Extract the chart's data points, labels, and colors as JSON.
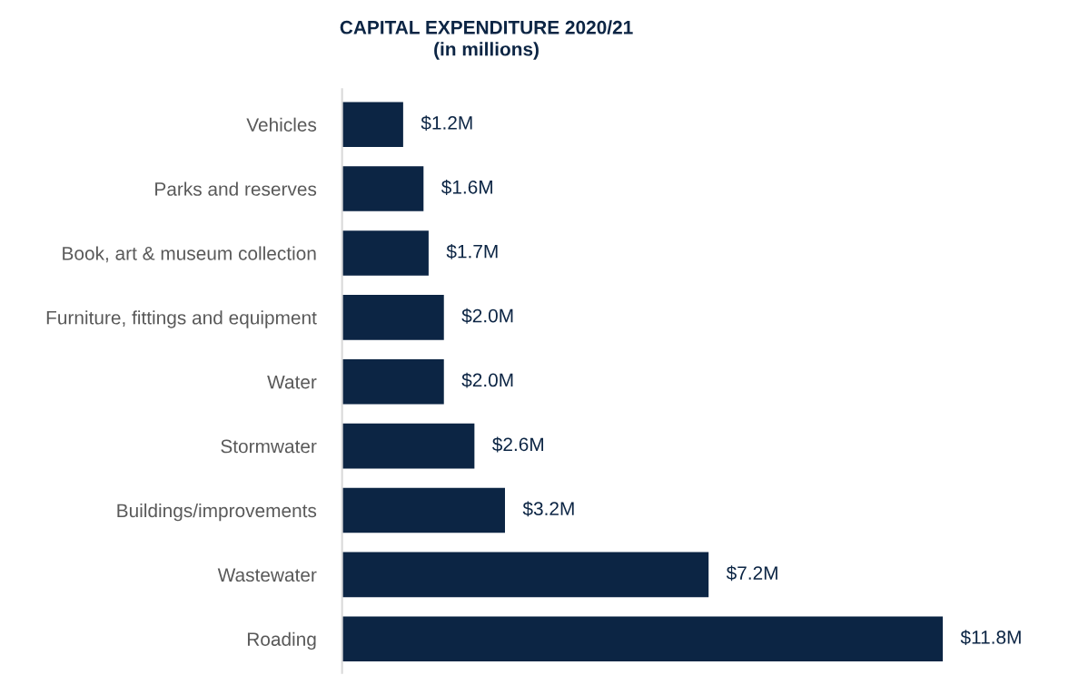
{
  "chart_data": {
    "type": "bar",
    "orientation": "horizontal",
    "title": "CAPITAL EXPENDITURE 2020/21\n(in millions)",
    "categories": [
      "Vehicles",
      "Parks and reserves",
      "Book, art & museum collection",
      "Furniture, fittings and equipment",
      "Water",
      "Stormwater",
      "Buildings/improvements",
      "Wastewater",
      "Roading"
    ],
    "values": [
      1.2,
      1.6,
      1.7,
      2.0,
      2.0,
      2.6,
      3.2,
      7.2,
      11.8
    ],
    "value_labels": [
      "$1.2M",
      "$1.6M",
      "$1.7M",
      "$2.0M",
      "$2.0M",
      "$2.6M",
      "$3.2M",
      "$7.2M",
      "$11.8M"
    ],
    "color": "#0c2544",
    "grid": false,
    "legend": false,
    "tick_labels": "y"
  }
}
